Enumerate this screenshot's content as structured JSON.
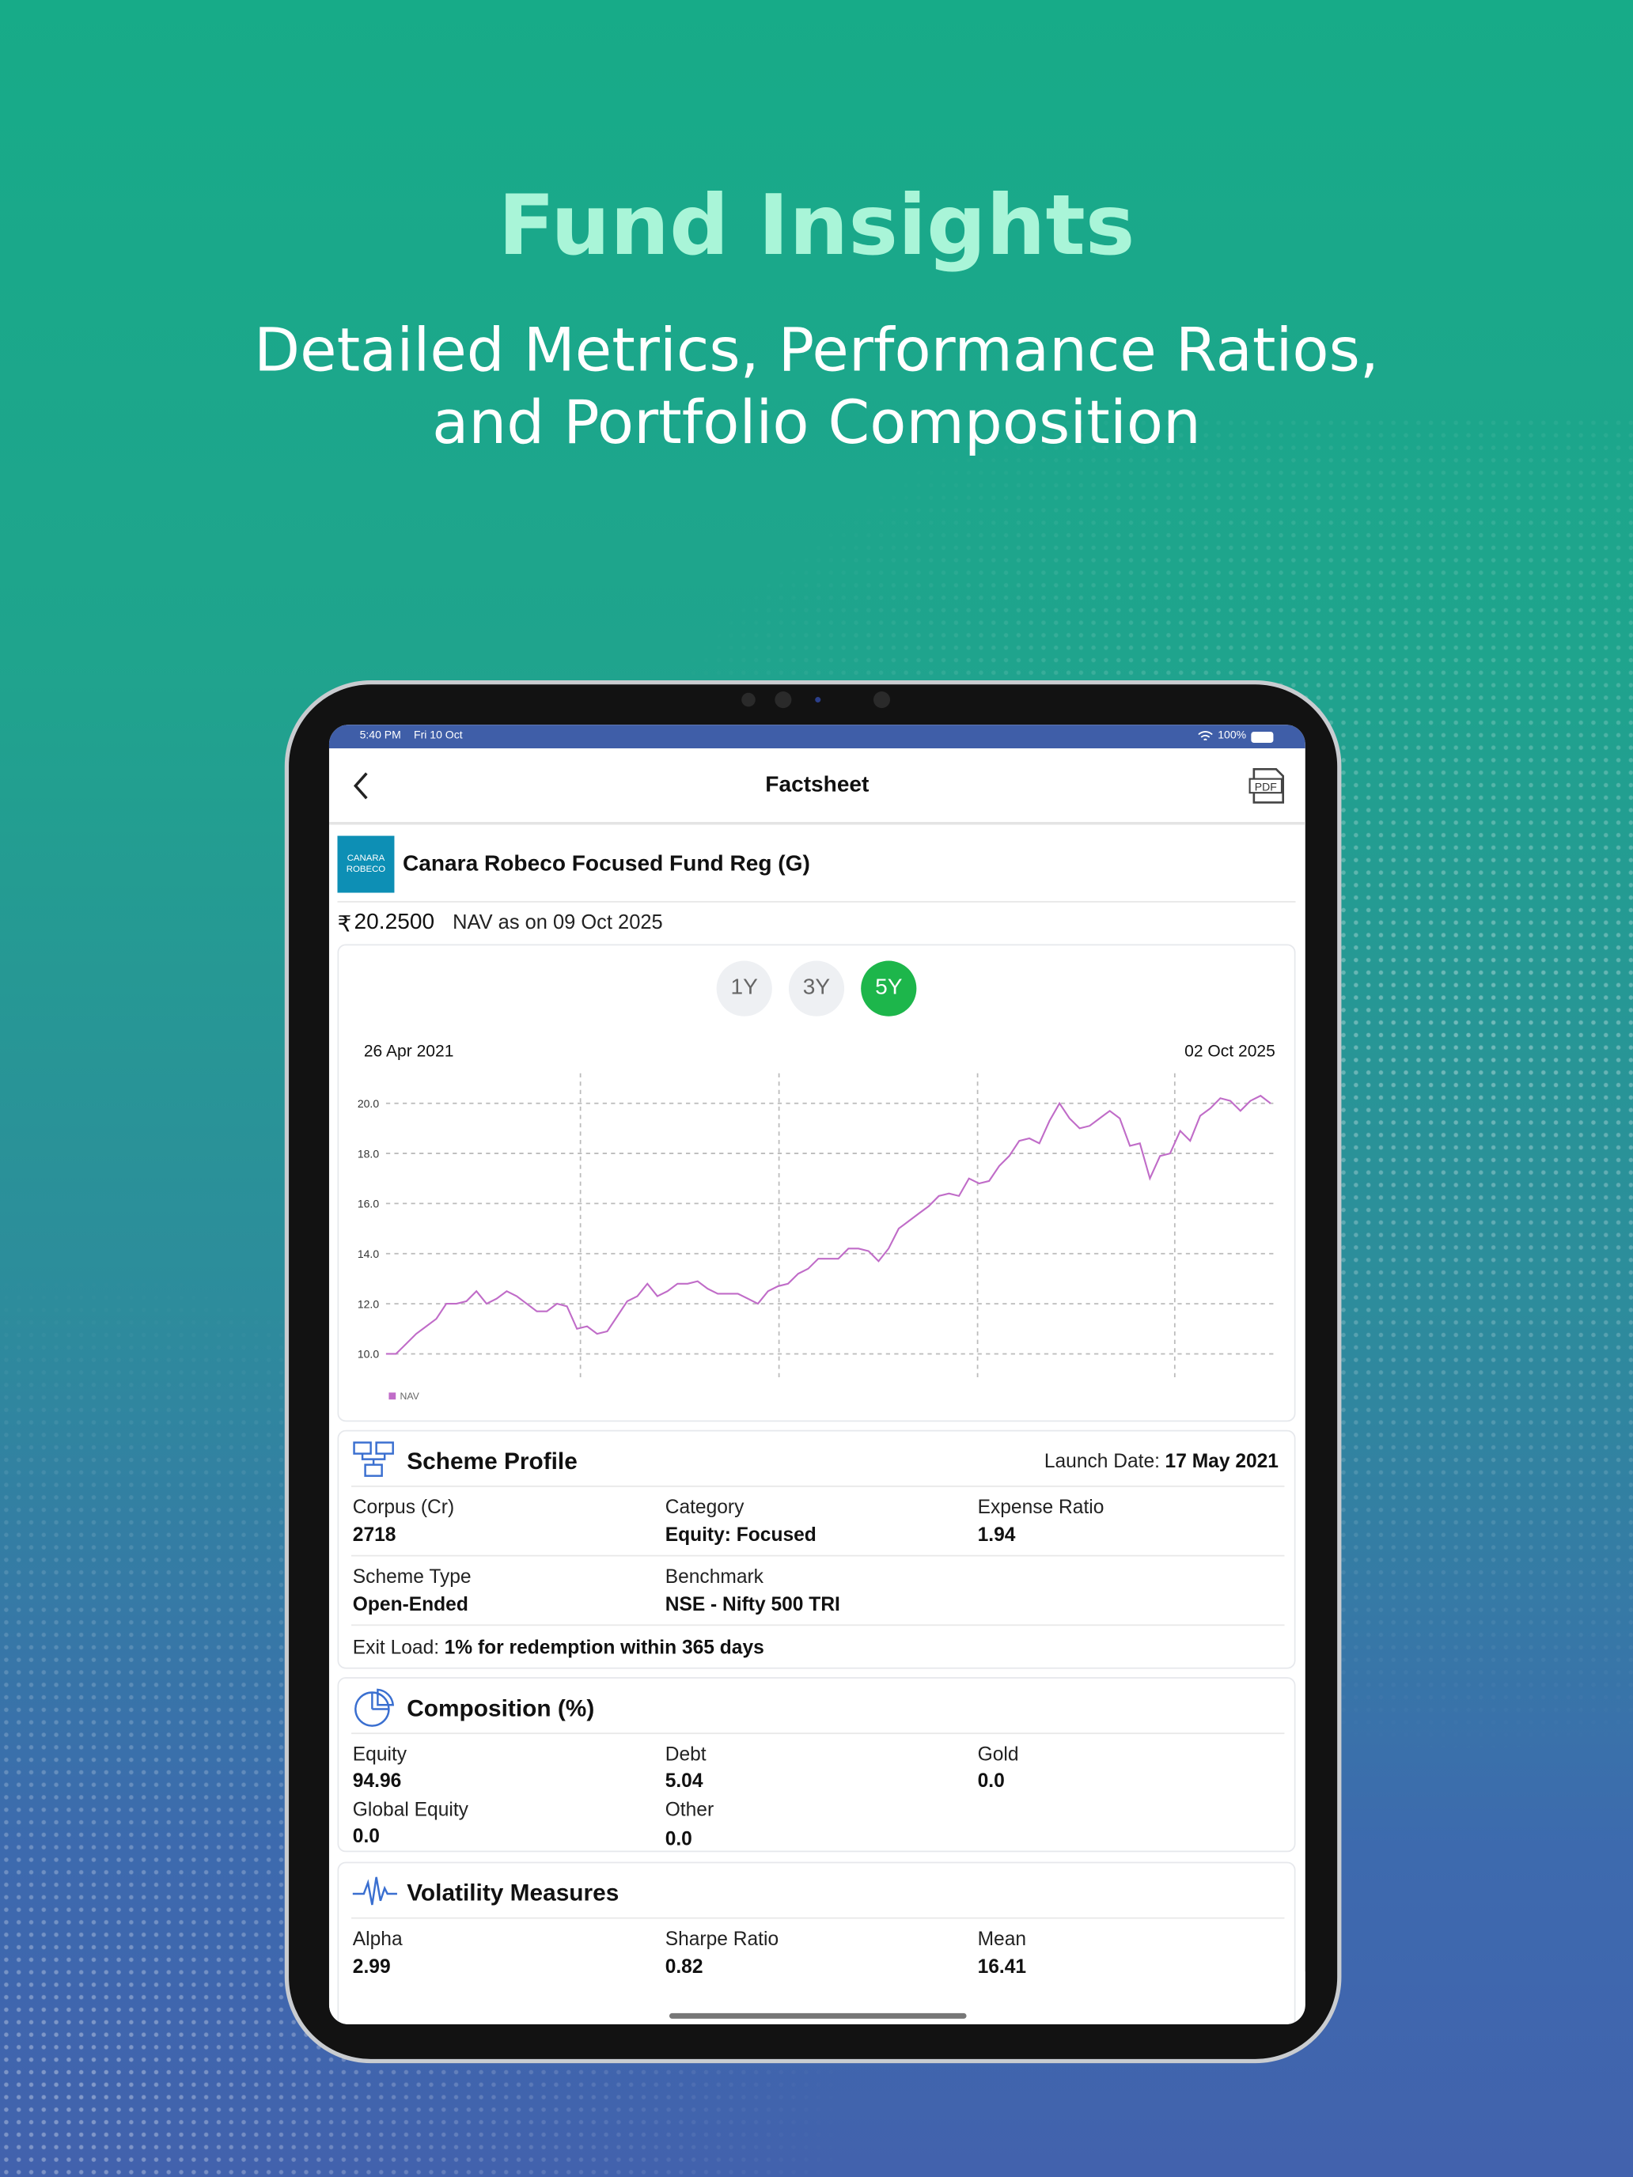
{
  "header": {
    "title": "Fund Insights",
    "subtitle_lines": [
      "Detailed Metrics, Performance Ratios,",
      "and Portfolio Composition"
    ]
  },
  "status_bar": {
    "time": "5:40 PM",
    "date": "Fri 10 Oct",
    "battery": "100%"
  },
  "nav_bar": {
    "title": "Factsheet",
    "pdf_icon": "PDF"
  },
  "fund": {
    "logo": [
      "CANARA",
      "ROBECO"
    ],
    "name": "Canara Robeco Focused Fund Reg (G)",
    "currency": "₹",
    "nav": "20.2500",
    "nav_date": "NAV as on 09 Oct 2025"
  },
  "periods": {
    "options": [
      "1Y",
      "3Y",
      "5Y"
    ],
    "selected": 2
  },
  "chart_data": {
    "type": "line",
    "date_range": [
      "26 Apr 2021",
      "02 Oct 2025"
    ],
    "series": [
      {
        "name": "NAV",
        "color": "#c06cc8",
        "values": [
          10.0,
          10.0,
          10.4,
          10.8,
          11.1,
          11.4,
          12.0,
          12.0,
          12.1,
          12.5,
          12.0,
          12.2,
          12.5,
          12.3,
          12.0,
          11.7,
          11.7,
          12.0,
          11.9,
          11.0,
          11.1,
          10.8,
          10.9,
          11.5,
          12.1,
          12.3,
          12.8,
          12.3,
          12.5,
          12.8,
          12.8,
          12.9,
          12.6,
          12.4,
          12.4,
          12.4,
          12.2,
          12.0,
          12.5,
          12.7,
          12.8,
          13.2,
          13.4,
          13.8,
          13.8,
          13.8,
          14.2,
          14.2,
          14.1,
          13.7,
          14.2,
          15.0,
          15.3,
          15.6,
          15.9,
          16.3,
          16.4,
          16.3,
          17.0,
          16.8,
          16.9,
          17.5,
          17.9,
          18.5,
          18.6,
          18.4,
          19.3,
          20.0,
          19.4,
          19.0,
          19.1,
          19.4,
          19.7,
          19.4,
          18.3,
          18.4,
          17.0,
          17.9,
          18.0,
          18.9,
          18.5,
          19.5,
          19.8,
          20.2,
          20.1,
          19.7,
          20.1,
          20.3,
          20.0
        ]
      }
    ],
    "ylim": [
      8.9,
      21.2
    ],
    "yticks": [
      {
        "value": 10,
        "label": "10.0"
      },
      {
        "value": 12,
        "label": "12.0"
      },
      {
        "value": 14,
        "label": "14.0"
      },
      {
        "value": 16,
        "label": "16.0"
      },
      {
        "value": 18,
        "label": "18.0"
      },
      {
        "value": 20,
        "label": "20.0"
      }
    ],
    "grid": true,
    "legend": "bottom-left"
  },
  "scheme_profile": {
    "title": "Scheme Profile",
    "launch_label": "Launch Date:",
    "launch_date": "17 May 2021",
    "fields": [
      {
        "label": "Corpus (Cr)",
        "value": "2718"
      },
      {
        "label": "Category",
        "value": "Equity: Focused"
      },
      {
        "label": "Expense Ratio",
        "value": "1.94"
      },
      {
        "label": "Scheme Type",
        "value": "Open-Ended"
      },
      {
        "label": "Benchmark",
        "value": "NSE - Nifty 500 TRI"
      }
    ],
    "exit_label": "Exit Load:",
    "exit_value": "1% for redemption within 365 days"
  },
  "composition": {
    "title": "Composition (%)",
    "fields": [
      {
        "label": "Equity",
        "value": "94.96"
      },
      {
        "label": "Debt",
        "value": "5.04"
      },
      {
        "label": "Gold",
        "value": "0.0"
      },
      {
        "label": "Global Equity",
        "value": "0.0"
      },
      {
        "label": "Other",
        "value": "0.0"
      }
    ]
  },
  "volatility": {
    "title": "Volatility Measures",
    "fields": [
      {
        "label": "Alpha",
        "value": "2.99"
      },
      {
        "label": "Sharpe Ratio",
        "value": "0.82"
      },
      {
        "label": "Mean",
        "value": "16.41"
      }
    ]
  }
}
